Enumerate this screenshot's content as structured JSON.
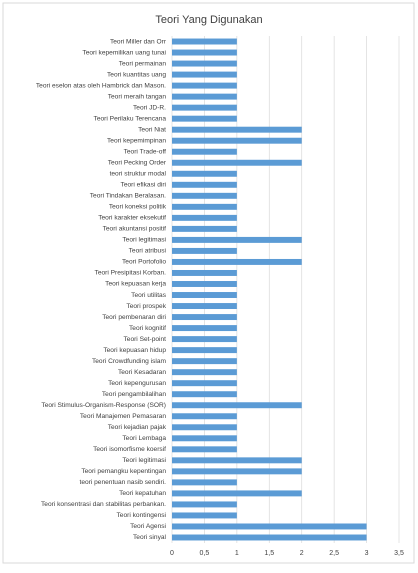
{
  "chart_data": {
    "type": "bar",
    "orientation": "horizontal",
    "title": "Teori Yang Digunakan",
    "categories": [
      "Teori Miller dan Orr",
      "Teori kepemilikan uang tunai",
      "Teori permainan",
      "Teori kuantitas uang",
      "Teori eselon atas oleh Hambrick dan Mason.",
      "Teori meraih tangan",
      "Teori JD-R.",
      "Teori Perilaku Terencana",
      "Teori Niat",
      "Teori kepemimpinan",
      "Teori Trade-off",
      "Teori Pecking Order",
      "teori struktur modal",
      "Teori efikasi diri",
      "Teori Tindakan Beralasan.",
      "Teori koneksi politik",
      "Teori karakter eksekutif",
      "Teori akuntansi positif",
      "Teori legitimasi",
      "Teori atribusi",
      "Teori Portofolio",
      "Teori Presipitasi Korban.",
      "Teori kepuasan kerja",
      "Teori utilitas",
      "Teori prospek",
      "Teori pembenaran diri",
      "Teori kognitif",
      "Teori Set-point",
      "Teori kepuasan hidup",
      "Teori Crowdfunding islam",
      "Teori Kesadaran",
      "Teori kepengurusan",
      "Teori pengambilalihan",
      "Teori Stimulus-Organism-Response (SOR)",
      "Teori Manajemen Pemasaran",
      "Teori kejadian pajak",
      "Teori Lembaga",
      "Teori isomorfisme koersif",
      "Teori legitimasi",
      "Teori pemangku kepentingan",
      "teori penentuan nasib sendiri.",
      "Teori kepatuhan",
      "Teori konsentrasi dan stabilitas perbankan.",
      "Teori kontingensi",
      "Teori Agensi",
      "Teori sinyal"
    ],
    "values": [
      1,
      1,
      1,
      1,
      1,
      1,
      1,
      1,
      2,
      2,
      1,
      2,
      1,
      1,
      1,
      1,
      1,
      1,
      2,
      1,
      2,
      1,
      1,
      1,
      1,
      1,
      1,
      1,
      1,
      1,
      1,
      1,
      1,
      2,
      1,
      1,
      1,
      1,
      2,
      2,
      1,
      2,
      1,
      1,
      3,
      3
    ],
    "color": "#5b9bd5",
    "xlim": [
      0,
      3.5
    ],
    "xticks": [
      0,
      {
        "value": 0.5,
        "label": "0,5"
      },
      1,
      {
        "value": 1.5,
        "label": "1,5"
      },
      2,
      {
        "value": 2.5,
        "label": "2,5"
      },
      3,
      {
        "value": 3.5,
        "label": "3,5"
      }
    ],
    "grid": true
  }
}
